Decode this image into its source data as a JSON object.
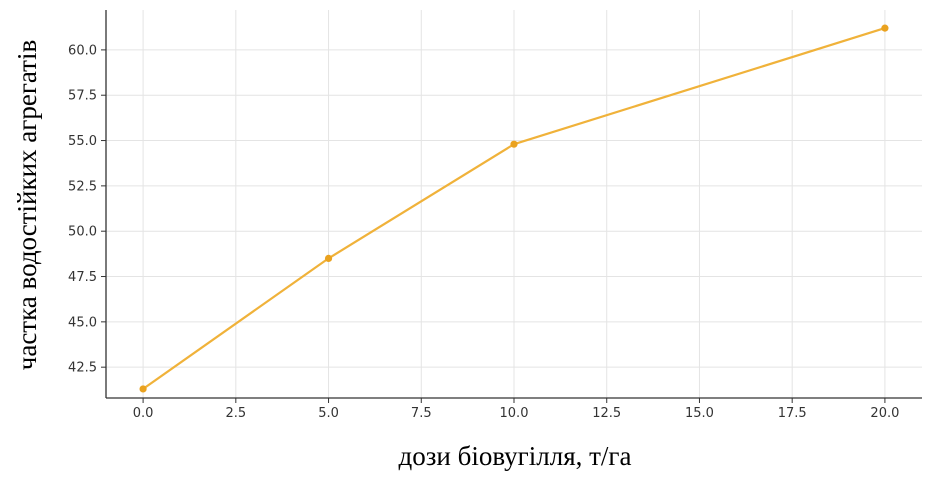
{
  "chart_data": {
    "type": "line",
    "title": "",
    "xlabel": "дози біовугілля, т/га",
    "ylabel": "частка водостійких агрегатів",
    "x": [
      0,
      5,
      10,
      20
    ],
    "series": [
      {
        "values": [
          41.3,
          48.5,
          54.8,
          61.2
        ]
      }
    ],
    "xlim": [
      -1,
      21
    ],
    "ylim": [
      40.8,
      62.2
    ],
    "xticks": [
      0,
      2.5,
      5,
      7.5,
      10,
      12.5,
      15,
      17.5,
      20
    ],
    "xtick_labels": [
      "0.0",
      "2.5",
      "5.0",
      "7.5",
      "10.0",
      "12.5",
      "15.0",
      "17.5",
      "20.0"
    ],
    "yticks": [
      42.5,
      45,
      47.5,
      50,
      52.5,
      55,
      57.5,
      60
    ],
    "ytick_labels": [
      "42.5",
      "45.0",
      "47.5",
      "50.0",
      "52.5",
      "55.0",
      "57.5",
      "60.0"
    ],
    "grid": true,
    "line_color": "#f0b23a",
    "marker_color": "#eaa21f"
  }
}
